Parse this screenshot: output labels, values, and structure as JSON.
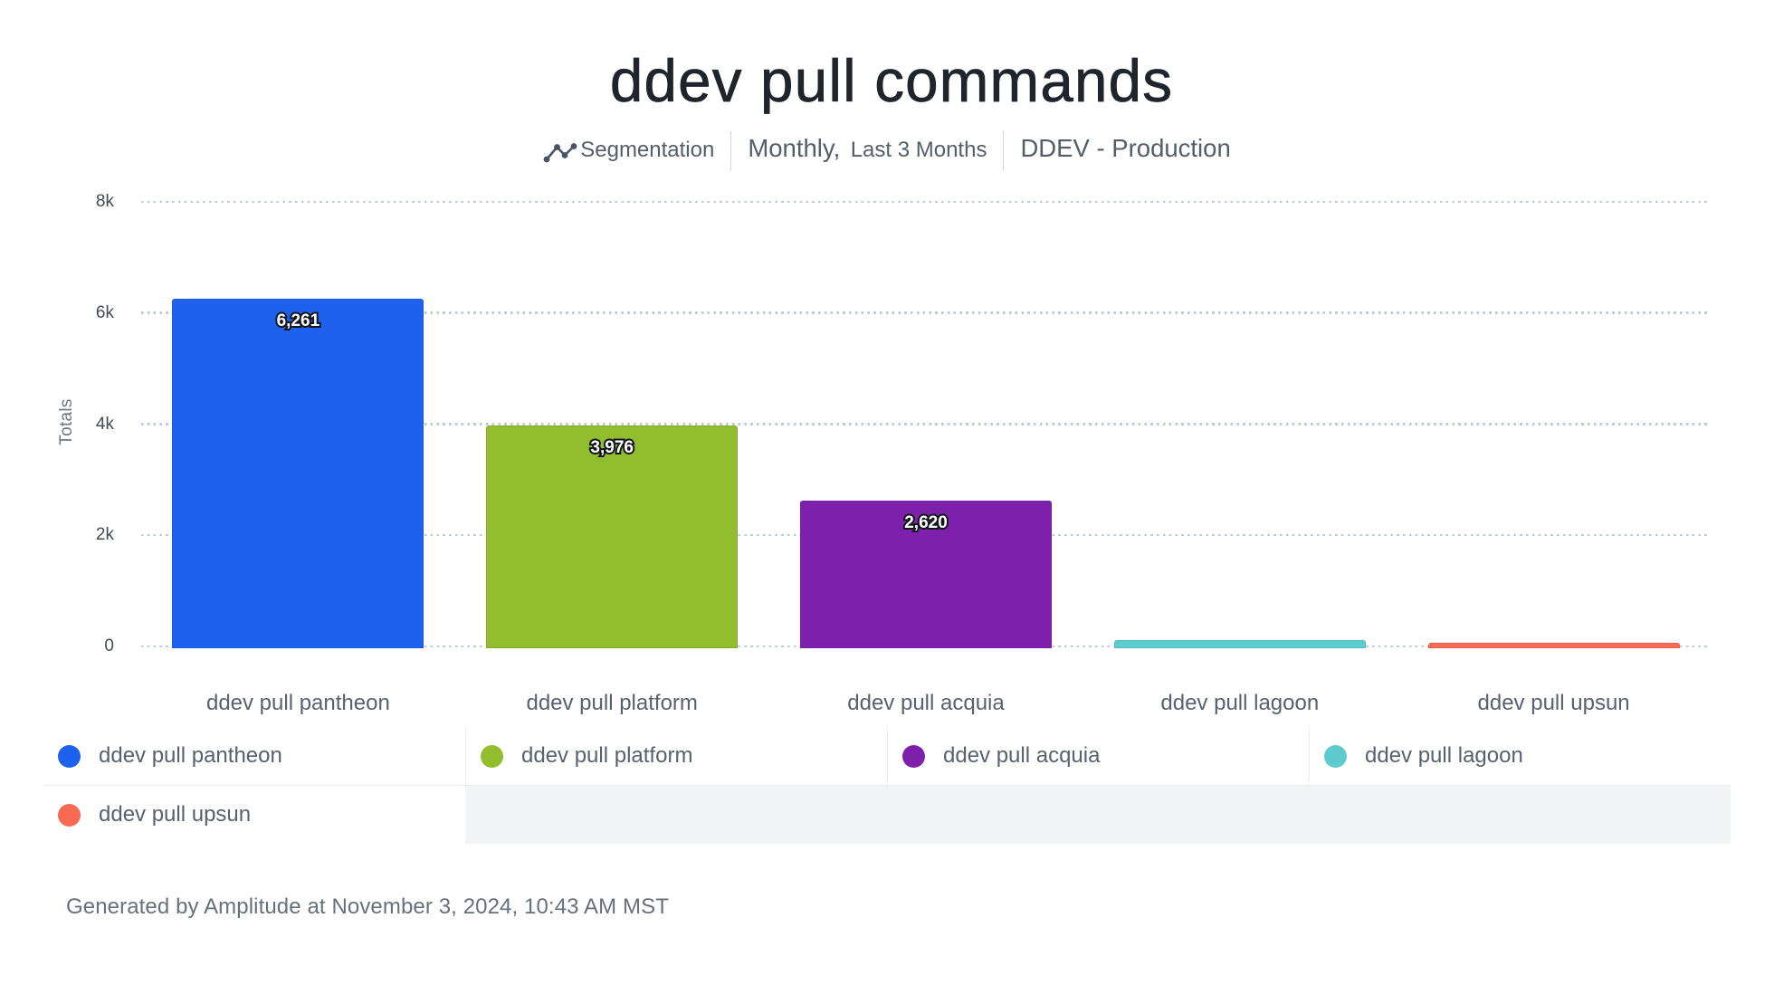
{
  "title": "ddev pull commands",
  "header": {
    "segmentation": {
      "icon": "line-chart-icon",
      "label": "Segmentation"
    },
    "interval": {
      "main": "Monthly,",
      "detail": "Last 3 Months"
    },
    "project": "DDEV - Production"
  },
  "chart_data": {
    "type": "bar",
    "title": "ddev pull commands",
    "xlabel": "",
    "ylabel": "Totals",
    "ylim": [
      0,
      8000
    ],
    "yticks": [
      {
        "value": 0,
        "label": "0"
      },
      {
        "value": 2000,
        "label": "2k"
      },
      {
        "value": 4000,
        "label": "4k"
      },
      {
        "value": 6000,
        "label": "6k"
      },
      {
        "value": 8000,
        "label": "8k"
      }
    ],
    "grid": "horizontal-dotted",
    "legend_position": "bottom",
    "categories": [
      "ddev pull pantheon",
      "ddev pull platform",
      "ddev pull acquia",
      "ddev pull lagoon",
      "ddev pull upsun"
    ],
    "values": [
      6261,
      3976,
      2620,
      110,
      60
    ],
    "value_labels": [
      "6,261",
      "3,976",
      "2,620",
      "",
      ""
    ],
    "colors": [
      "#1d61ee",
      "#91bd2f",
      "#7d21ac",
      "#5eccce",
      "#f96a52"
    ]
  },
  "legend": {
    "items": [
      {
        "label": "ddev pull pantheon",
        "color": "#1d61ee"
      },
      {
        "label": "ddev pull platform",
        "color": "#91bd2f"
      },
      {
        "label": "ddev pull acquia",
        "color": "#7d21ac"
      },
      {
        "label": "ddev pull lagoon",
        "color": "#5eccce"
      },
      {
        "label": "ddev pull upsun",
        "color": "#f96a52"
      }
    ]
  },
  "footer": {
    "text": "Generated by Amplitude at November 3, 2024, 10:43 AM MST"
  }
}
